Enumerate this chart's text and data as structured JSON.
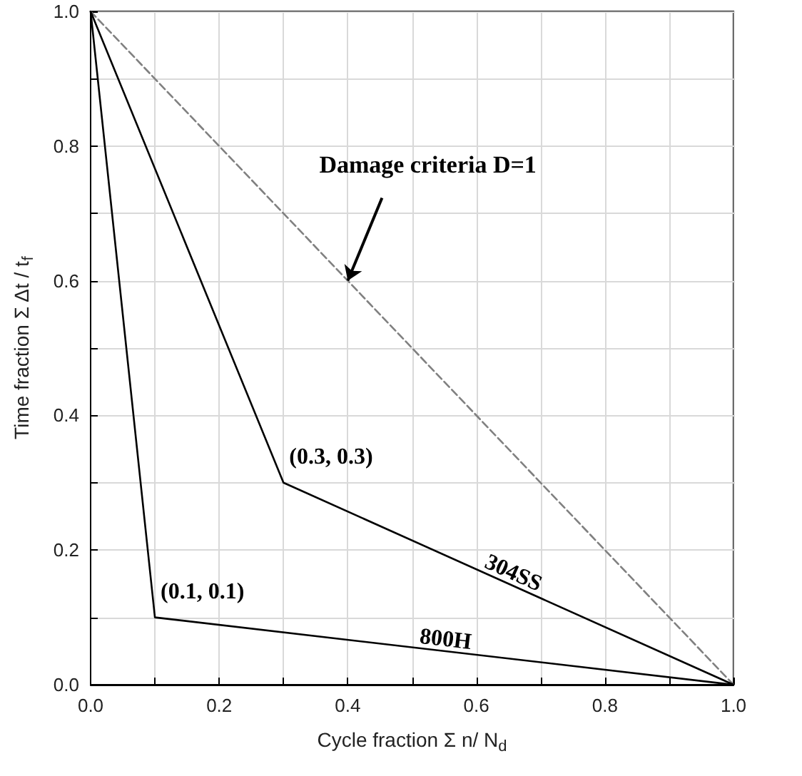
{
  "chart_data": {
    "type": "line",
    "xlabel": "Cycle fraction Σ n/ N$_{d}$",
    "ylabel": "Time fraction Σ Δt / t$_{f}$",
    "series": [
      {
        "x": [
          0,
          1
        ],
        "values": [
          1,
          0
        ],
        "color": "#808080",
        "line_style": "dashed"
      },
      {
        "name": "304SS",
        "x": [
          0,
          0.3,
          1
        ],
        "values": [
          1,
          0.3,
          0
        ],
        "color": "#000000",
        "line_style": "solid"
      },
      {
        "name": "800H",
        "x": [
          0,
          0.1,
          1
        ],
        "values": [
          1,
          0.1,
          0
        ],
        "color": "#000000",
        "line_style": "solid"
      }
    ],
    "annotations": [
      {
        "text": "Damage criteria D=1",
        "x": 0.4,
        "y": 0.6
      },
      {
        "text": "(0.3, 0.3)",
        "x": 0.3,
        "y": 0.3
      },
      {
        "text": "(0.1, 0.1)",
        "x": 0.1,
        "y": 0.1
      }
    ],
    "xlim": [
      0,
      1
    ],
    "ylim": [
      0,
      1
    ],
    "xticks": [
      {
        "value": 0,
        "label": "0.0"
      },
      {
        "value": 0.1,
        "label": null
      },
      {
        "value": 0.2,
        "label": "0.2"
      },
      {
        "value": 0.3,
        "label": null
      },
      {
        "value": 0.4,
        "label": "0.4"
      },
      {
        "value": 0.5,
        "label": null
      },
      {
        "value": 0.6,
        "label": "0.6"
      },
      {
        "value": 0.7,
        "label": null
      },
      {
        "value": 0.8,
        "label": "0.8"
      },
      {
        "value": 0.9,
        "label": null
      },
      {
        "value": 1,
        "label": "1.0"
      }
    ],
    "yticks": [
      {
        "value": 0,
        "label": "0.0"
      },
      {
        "value": 0.1,
        "label": null
      },
      {
        "value": 0.2,
        "label": "0.2"
      },
      {
        "value": 0.3,
        "label": null
      },
      {
        "value": 0.4,
        "label": "0.4"
      },
      {
        "value": 0.5,
        "label": null
      },
      {
        "value": 0.6,
        "label": "0.6"
      },
      {
        "value": 0.7,
        "label": null
      },
      {
        "value": 0.8,
        "label": "0.8"
      },
      {
        "value": 0.9,
        "label": null
      },
      {
        "value": 1,
        "label": "1.0"
      }
    ],
    "grid": true,
    "marker": "none",
    "legend": false
  }
}
